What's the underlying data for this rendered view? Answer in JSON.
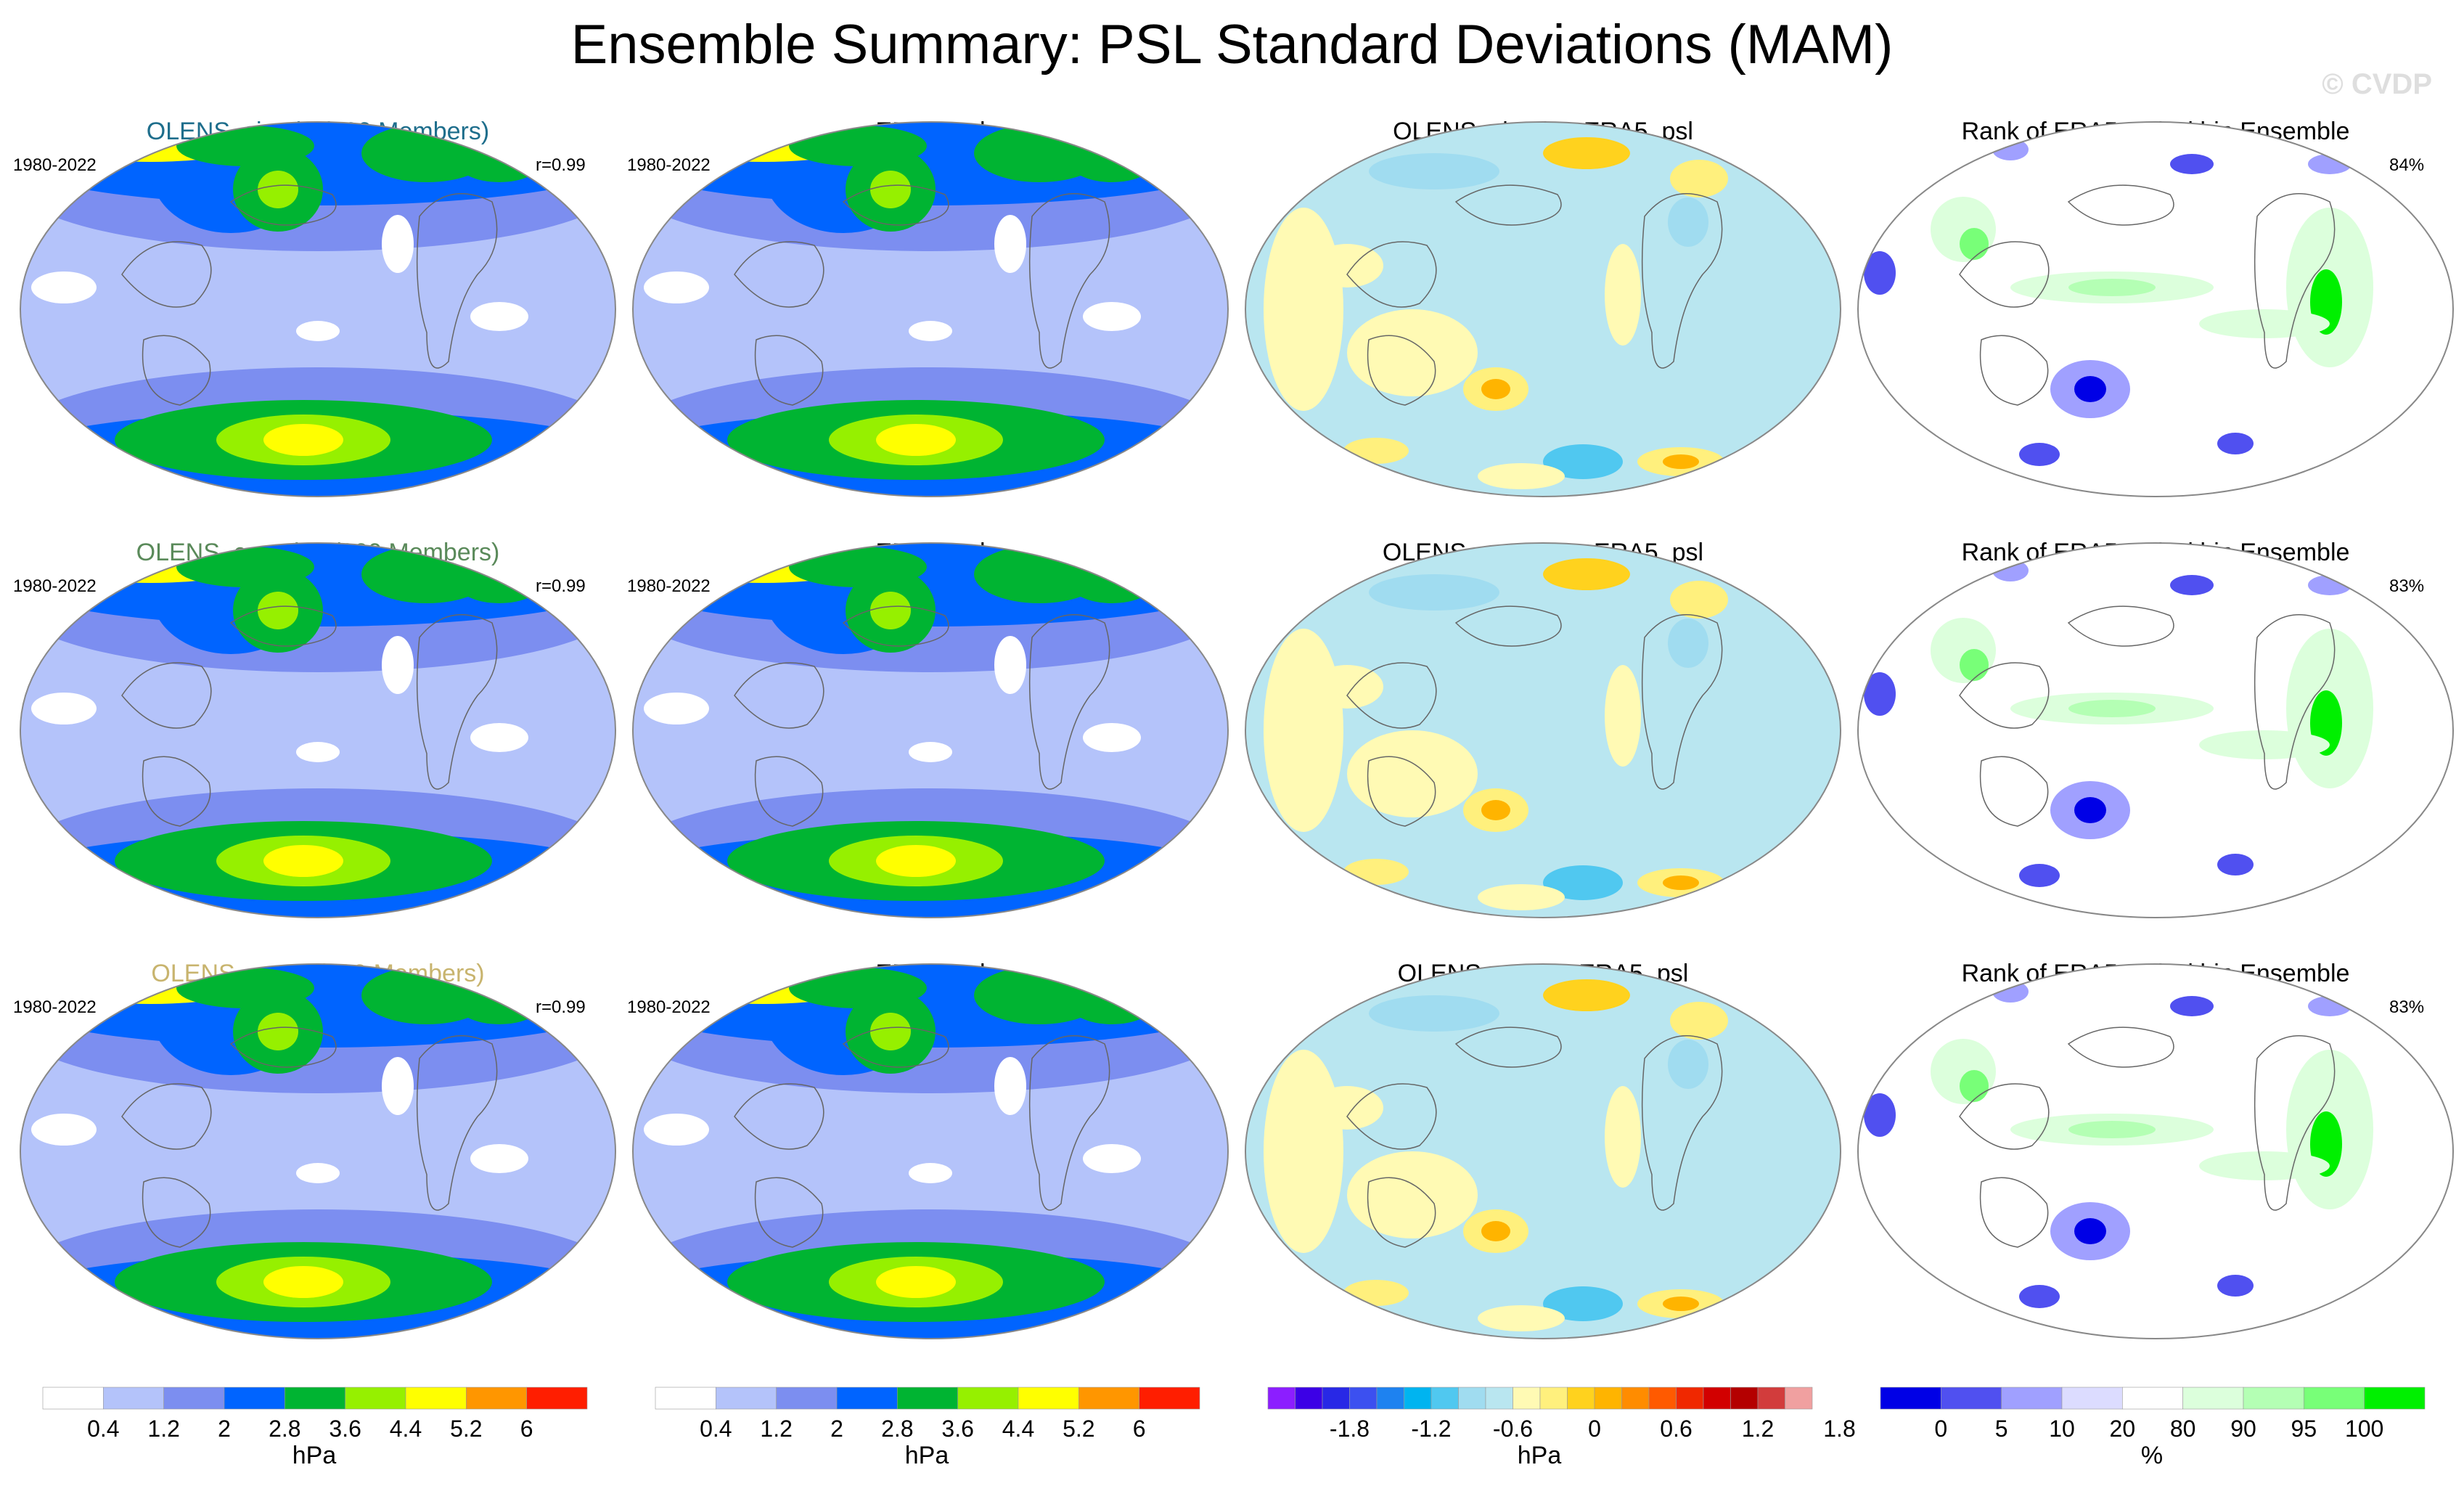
{
  "title": "Ensemble Summary: PSL Standard Deviations (MAM)",
  "watermark": "© CVDP",
  "rows": [
    {
      "model_title": "OLENS_simple (200 Members)",
      "model_color": "#1e6e8c",
      "period_left": "1980-2022",
      "r_value": "r=0.99",
      "obs_title": "ERA5_psl",
      "obs_period": "1980-2022",
      "diff_title": "OLENS_simple - ERA5_psl",
      "rank_title": "Rank of ERA5_psl within Ensemble",
      "rank_pct": "84%"
    },
    {
      "model_title": "OLENS_complex (200 Members)",
      "model_color": "#5a8a5a",
      "period_left": "1980-2022",
      "r_value": "r=0.99",
      "obs_title": "ERA5_psl",
      "obs_period": "1980-2022",
      "diff_title": "OLENS_complex - ERA5_psl",
      "rank_title": "Rank of ERA5_psl within Ensemble",
      "rank_pct": "83%"
    },
    {
      "model_title": "OLENS_mean (200 Members)",
      "model_color": "#c8b46e",
      "period_left": "1980-2022",
      "r_value": "r=0.99",
      "obs_title": "ERA5_psl",
      "obs_period": "1980-2022",
      "diff_title": "OLENS_mean - ERA5_psl",
      "rank_title": "Rank of ERA5_psl within Ensemble",
      "rank_pct": "83%"
    }
  ],
  "chart_data": [
    {
      "type": "colorbar",
      "name": "std",
      "unit": "hPa",
      "tick_labels": [
        "0.4",
        "1.2",
        "2",
        "2.8",
        "3.6",
        "4.4",
        "5.2",
        "6"
      ],
      "colors": [
        "#ffffff",
        "#b4c3fa",
        "#7c8ef0",
        "#0064ff",
        "#00b432",
        "#96f000",
        "#ffff00",
        "#ff9600",
        "#ff1e00"
      ]
    },
    {
      "type": "colorbar",
      "name": "std_obs",
      "unit": "hPa",
      "tick_labels": [
        "0.4",
        "1.2",
        "2",
        "2.8",
        "3.6",
        "4.4",
        "5.2",
        "6"
      ],
      "colors": [
        "#ffffff",
        "#b4c3fa",
        "#7c8ef0",
        "#0064ff",
        "#00b432",
        "#96f000",
        "#ffff00",
        "#ff9600",
        "#ff1e00"
      ]
    },
    {
      "type": "colorbar",
      "name": "difference",
      "unit": "hPa",
      "tick_labels": [
        "-1.8",
        "-1.2",
        "-0.6",
        "0",
        "0.6",
        "1.2",
        "1.8"
      ],
      "colors": [
        "#8c1eff",
        "#3c00e6",
        "#2828e6",
        "#3c50f0",
        "#1e82f0",
        "#00b4f0",
        "#50c8f0",
        "#a0dcf0",
        "#b9e6f0",
        "#fffab4",
        "#fff07d",
        "#ffd21e",
        "#ffb400",
        "#ff8c00",
        "#ff5a00",
        "#f02800",
        "#d20000",
        "#b40000",
        "#d23c3c",
        "#f0a0a0"
      ]
    },
    {
      "type": "colorbar",
      "name": "rank",
      "unit": "%",
      "tick_labels": [
        "0",
        "5",
        "10",
        "20",
        "80",
        "90",
        "95",
        "100"
      ],
      "colors": [
        "#0000e6",
        "#5050f0",
        "#a0a0ff",
        "#dcdcff",
        "#ffffff",
        "#dcffdc",
        "#b4ffb4",
        "#78ff78",
        "#00f000"
      ]
    }
  ]
}
